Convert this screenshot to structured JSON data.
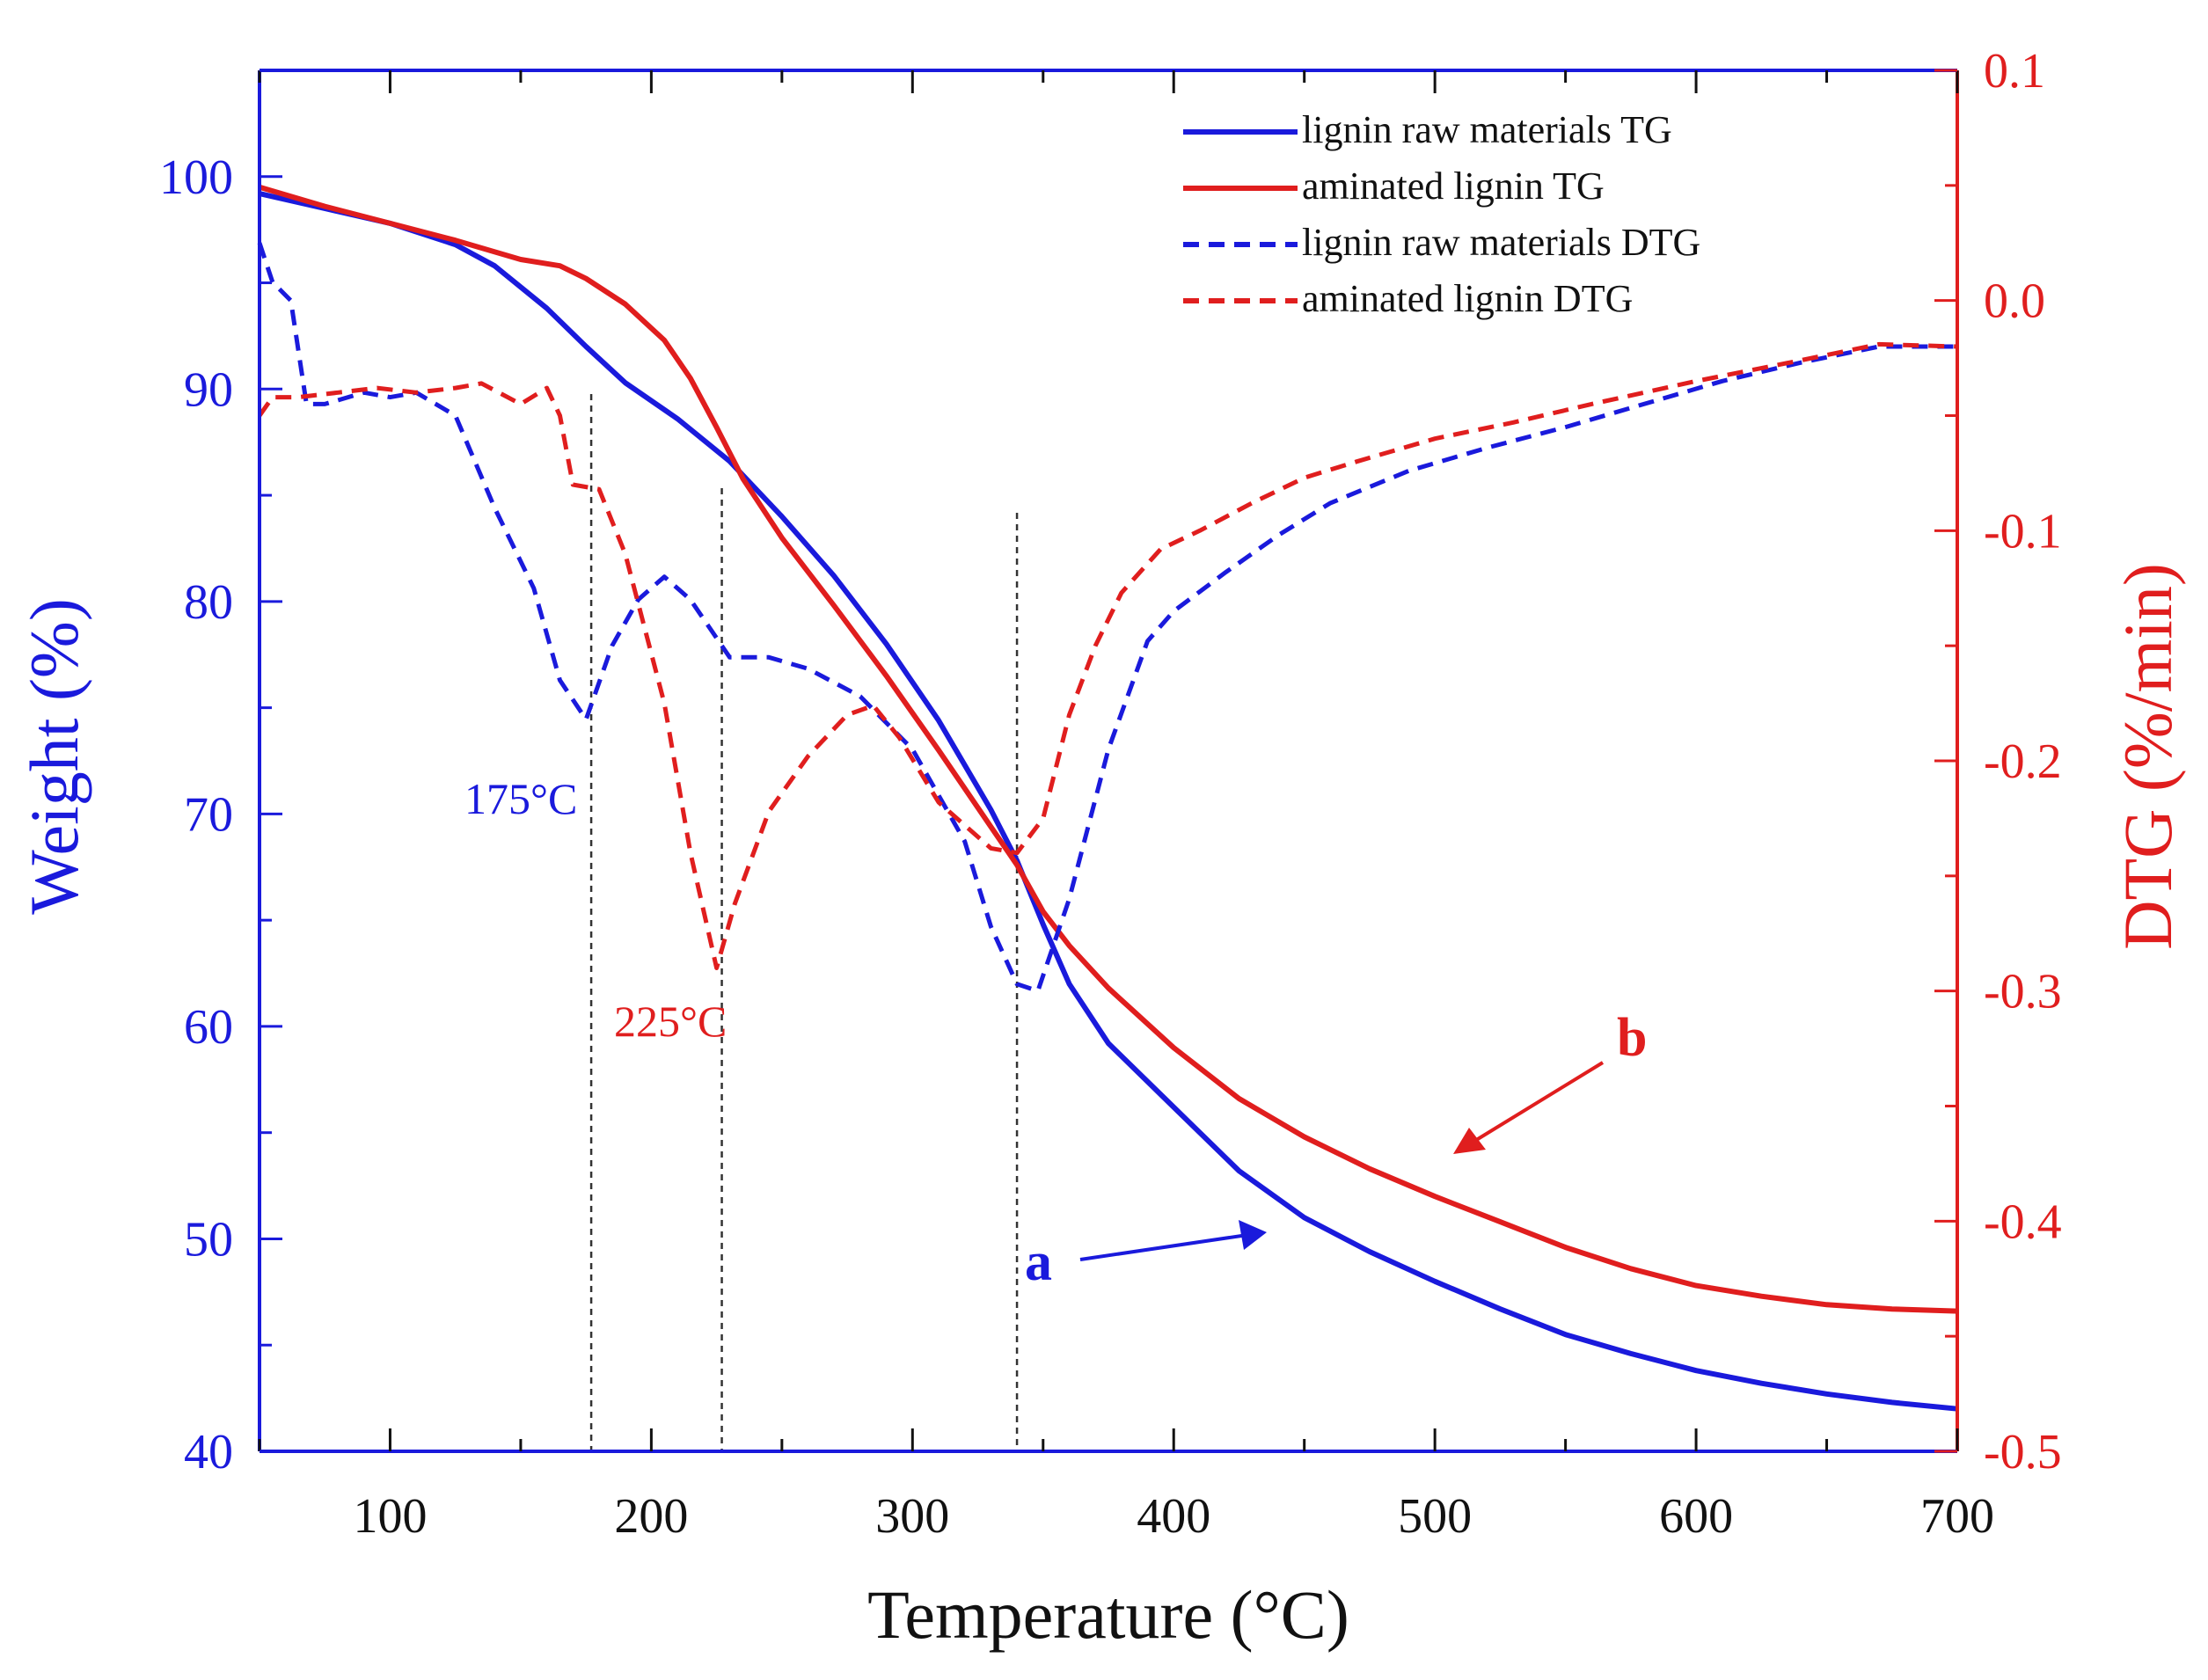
{
  "chart_data": {
    "type": "line",
    "xlabel": "Temperature (°C)",
    "ylabel_left": "Weight (%)",
    "ylabel_right": "DTG (%/min)",
    "xlim": [
      50,
      700
    ],
    "ylim_left": [
      40,
      105
    ],
    "ylim_right": [
      -0.5,
      0.1
    ],
    "x_ticks": [
      100,
      200,
      300,
      400,
      500,
      600,
      700
    ],
    "y_left_ticks": [
      40,
      50,
      60,
      70,
      80,
      90,
      100
    ],
    "y_right_ticks": [
      -0.5,
      -0.4,
      -0.3,
      -0.2,
      -0.1,
      0.0,
      0.1
    ],
    "y_right_tick_labels": [
      "-0.5",
      "-0.4",
      "-0.3",
      "-0.2",
      "-0.1",
      "0.0",
      "0.1"
    ],
    "grid": false,
    "legend_position": "top-right",
    "colors": {
      "left_axis": "#1a1adc",
      "right_axis": "#e01e1e"
    },
    "series": [
      {
        "name": "lignin raw materials TG",
        "axis": "left",
        "style": "solid",
        "color": "#1a1adc",
        "x": [
          50,
          75,
          100,
          125,
          140,
          160,
          175,
          190,
          210,
          230,
          250,
          270,
          290,
          310,
          330,
          340,
          350,
          360,
          375,
          400,
          425,
          450,
          475,
          500,
          525,
          550,
          575,
          600,
          625,
          650,
          675,
          700
        ],
        "y": [
          99.2,
          98.5,
          97.8,
          96.8,
          95.8,
          93.8,
          92.0,
          90.3,
          88.6,
          86.6,
          84.0,
          81.2,
          78.0,
          74.4,
          70.2,
          67.8,
          64.8,
          62.0,
          59.2,
          56.2,
          53.2,
          51.0,
          49.4,
          48.0,
          46.7,
          45.5,
          44.6,
          43.8,
          43.2,
          42.7,
          42.3,
          42.0
        ]
      },
      {
        "name": "aminated lignin TG",
        "axis": "left",
        "style": "solid",
        "color": "#e01e1e",
        "x": [
          50,
          75,
          100,
          125,
          150,
          165,
          175,
          190,
          205,
          215,
          225,
          235,
          250,
          270,
          290,
          310,
          330,
          340,
          350,
          360,
          375,
          400,
          425,
          450,
          475,
          500,
          525,
          550,
          575,
          600,
          625,
          650,
          675,
          700
        ],
        "y": [
          99.5,
          98.6,
          97.8,
          97.0,
          96.1,
          95.8,
          95.2,
          94.0,
          92.3,
          90.5,
          88.2,
          85.8,
          83.0,
          79.8,
          76.5,
          73.0,
          69.4,
          67.6,
          65.4,
          63.8,
          61.8,
          59.0,
          56.6,
          54.8,
          53.3,
          52.0,
          50.8,
          49.6,
          48.6,
          47.8,
          47.3,
          46.9,
          46.7,
          46.6
        ]
      },
      {
        "name": "lignin raw materials DTG",
        "axis": "right",
        "style": "dashed",
        "color": "#1a1adc",
        "x": [
          50,
          55,
          62,
          68,
          75,
          90,
          100,
          110,
          125,
          140,
          155,
          165,
          175,
          185,
          195,
          205,
          215,
          230,
          245,
          260,
          280,
          300,
          310,
          320,
          330,
          340,
          348,
          360,
          375,
          390,
          400,
          420,
          440,
          460,
          490,
          520,
          550,
          580,
          610,
          640,
          670,
          700
        ],
        "y": [
          0.025,
          0.008,
          0.0,
          -0.045,
          -0.045,
          -0.04,
          -0.042,
          -0.04,
          -0.05,
          -0.09,
          -0.125,
          -0.165,
          -0.182,
          -0.15,
          -0.13,
          -0.12,
          -0.13,
          -0.155,
          -0.155,
          -0.16,
          -0.172,
          -0.195,
          -0.215,
          -0.235,
          -0.272,
          -0.297,
          -0.3,
          -0.26,
          -0.195,
          -0.148,
          -0.135,
          -0.118,
          -0.102,
          -0.088,
          -0.074,
          -0.064,
          -0.055,
          -0.045,
          -0.035,
          -0.027,
          -0.02,
          -0.02
        ]
      },
      {
        "name": "aminated lignin DTG",
        "axis": "right",
        "style": "dashed",
        "color": "#e01e1e",
        "x": [
          50,
          55,
          65,
          80,
          95,
          110,
          125,
          135,
          150,
          160,
          165,
          170,
          180,
          190,
          205,
          215,
          225,
          232,
          245,
          260,
          275,
          285,
          295,
          310,
          320,
          330,
          340,
          350,
          360,
          370,
          380,
          395,
          410,
          430,
          450,
          470,
          500,
          530,
          560,
          600,
          640,
          670,
          700
        ],
        "y": [
          -0.05,
          -0.042,
          -0.042,
          -0.04,
          -0.038,
          -0.04,
          -0.038,
          -0.036,
          -0.045,
          -0.038,
          -0.05,
          -0.08,
          -0.082,
          -0.11,
          -0.175,
          -0.24,
          -0.29,
          -0.262,
          -0.222,
          -0.198,
          -0.18,
          -0.176,
          -0.19,
          -0.218,
          -0.228,
          -0.238,
          -0.24,
          -0.225,
          -0.18,
          -0.15,
          -0.127,
          -0.108,
          -0.1,
          -0.088,
          -0.077,
          -0.07,
          -0.06,
          -0.053,
          -0.045,
          -0.035,
          -0.026,
          -0.019,
          -0.02
        ]
      }
    ],
    "annotations": [
      {
        "text": "175°C",
        "x": 175,
        "color": "#1a1adc"
      },
      {
        "text": "225°C",
        "x": 225,
        "color": "#e01e1e"
      },
      {
        "text": "a",
        "color": "#1a1adc"
      },
      {
        "text": "b",
        "color": "#e01e1e"
      }
    ],
    "vertical_reference_lines_x": [
      177,
      227,
      340
    ]
  }
}
